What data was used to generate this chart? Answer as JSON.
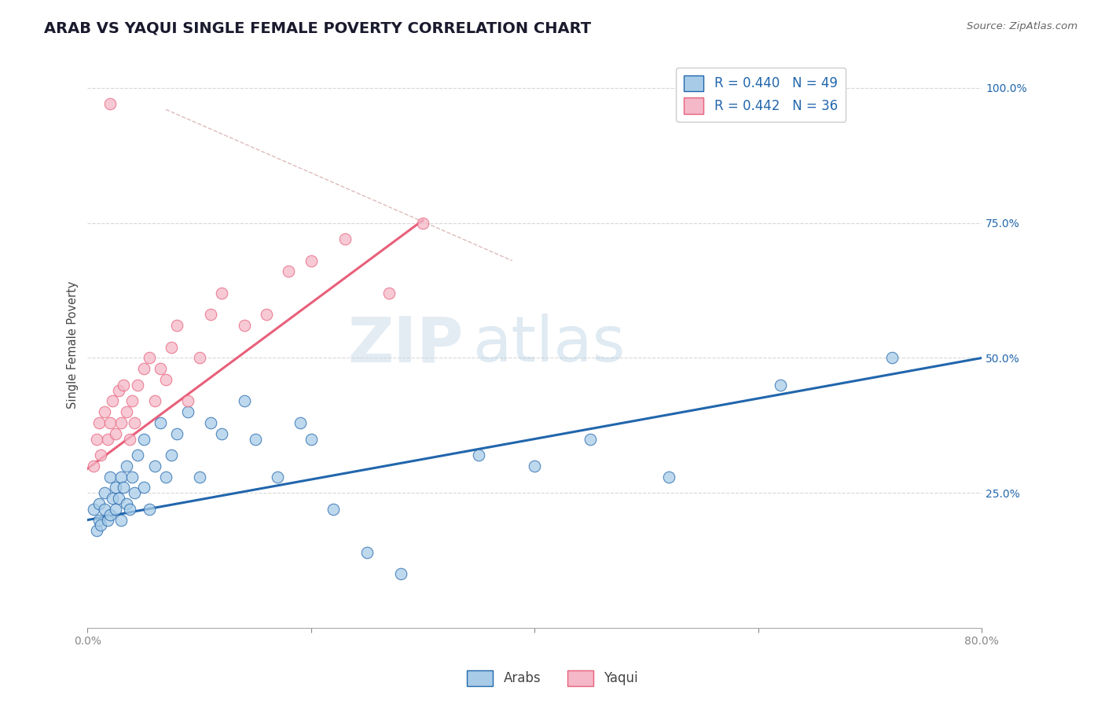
{
  "title": "ARAB VS YAQUI SINGLE FEMALE POVERTY CORRELATION CHART",
  "source": "Source: ZipAtlas.com",
  "ylabel": "Single Female Poverty",
  "xlim": [
    0.0,
    0.8
  ],
  "ylim": [
    0.0,
    1.05
  ],
  "ytick_positions": [
    0.25,
    0.5,
    0.75,
    1.0
  ],
  "ytick_labels": [
    "25.0%",
    "50.0%",
    "75.0%",
    "100.0%"
  ],
  "arab_R": 0.44,
  "arab_N": 49,
  "yaqui_R": 0.442,
  "yaqui_N": 36,
  "arab_color": "#a8cce8",
  "yaqui_color": "#f4b8c8",
  "arab_line_color": "#2166ac",
  "yaqui_line_color": "#e8607a",
  "diagonal_color": "#ddbbbb",
  "watermark_zip": "ZIP",
  "watermark_atlas": "atlas",
  "arab_scatter_x": [
    0.005,
    0.008,
    0.01,
    0.01,
    0.012,
    0.015,
    0.015,
    0.018,
    0.02,
    0.02,
    0.022,
    0.025,
    0.025,
    0.028,
    0.03,
    0.03,
    0.032,
    0.035,
    0.035,
    0.038,
    0.04,
    0.042,
    0.045,
    0.05,
    0.05,
    0.055,
    0.06,
    0.065,
    0.07,
    0.075,
    0.08,
    0.09,
    0.1,
    0.11,
    0.12,
    0.14,
    0.15,
    0.17,
    0.19,
    0.2,
    0.22,
    0.25,
    0.28,
    0.35,
    0.4,
    0.45,
    0.52,
    0.62,
    0.72
  ],
  "arab_scatter_y": [
    0.22,
    0.18,
    0.23,
    0.2,
    0.19,
    0.22,
    0.25,
    0.2,
    0.21,
    0.28,
    0.24,
    0.22,
    0.26,
    0.24,
    0.2,
    0.28,
    0.26,
    0.23,
    0.3,
    0.22,
    0.28,
    0.25,
    0.32,
    0.26,
    0.35,
    0.22,
    0.3,
    0.38,
    0.28,
    0.32,
    0.36,
    0.4,
    0.28,
    0.38,
    0.36,
    0.42,
    0.35,
    0.28,
    0.38,
    0.35,
    0.22,
    0.14,
    0.1,
    0.32,
    0.3,
    0.35,
    0.28,
    0.45,
    0.5
  ],
  "yaqui_scatter_x": [
    0.005,
    0.008,
    0.01,
    0.012,
    0.015,
    0.018,
    0.02,
    0.022,
    0.025,
    0.028,
    0.03,
    0.032,
    0.035,
    0.038,
    0.04,
    0.042,
    0.045,
    0.05,
    0.055,
    0.06,
    0.065,
    0.07,
    0.075,
    0.08,
    0.09,
    0.1,
    0.11,
    0.12,
    0.14,
    0.16,
    0.18,
    0.2,
    0.23,
    0.27,
    0.3,
    0.02
  ],
  "yaqui_scatter_y": [
    0.3,
    0.35,
    0.38,
    0.32,
    0.4,
    0.35,
    0.38,
    0.42,
    0.36,
    0.44,
    0.38,
    0.45,
    0.4,
    0.35,
    0.42,
    0.38,
    0.45,
    0.48,
    0.5,
    0.42,
    0.48,
    0.46,
    0.52,
    0.56,
    0.42,
    0.5,
    0.58,
    0.62,
    0.56,
    0.58,
    0.66,
    0.68,
    0.72,
    0.62,
    0.75,
    0.97
  ],
  "arab_line_x": [
    0.0,
    0.8
  ],
  "arab_line_y": [
    0.2,
    0.5
  ],
  "yaqui_line_x": [
    0.0,
    0.3
  ],
  "yaqui_line_y": [
    0.295,
    0.755
  ],
  "diag_line_x": [
    0.07,
    0.38
  ],
  "diag_line_y": [
    0.96,
    0.68
  ],
  "background_color": "#ffffff",
  "grid_color": "#d8d8d8",
  "title_color": "#1a1a2e",
  "source_color": "#666666",
  "axis_label_color": "#444444"
}
